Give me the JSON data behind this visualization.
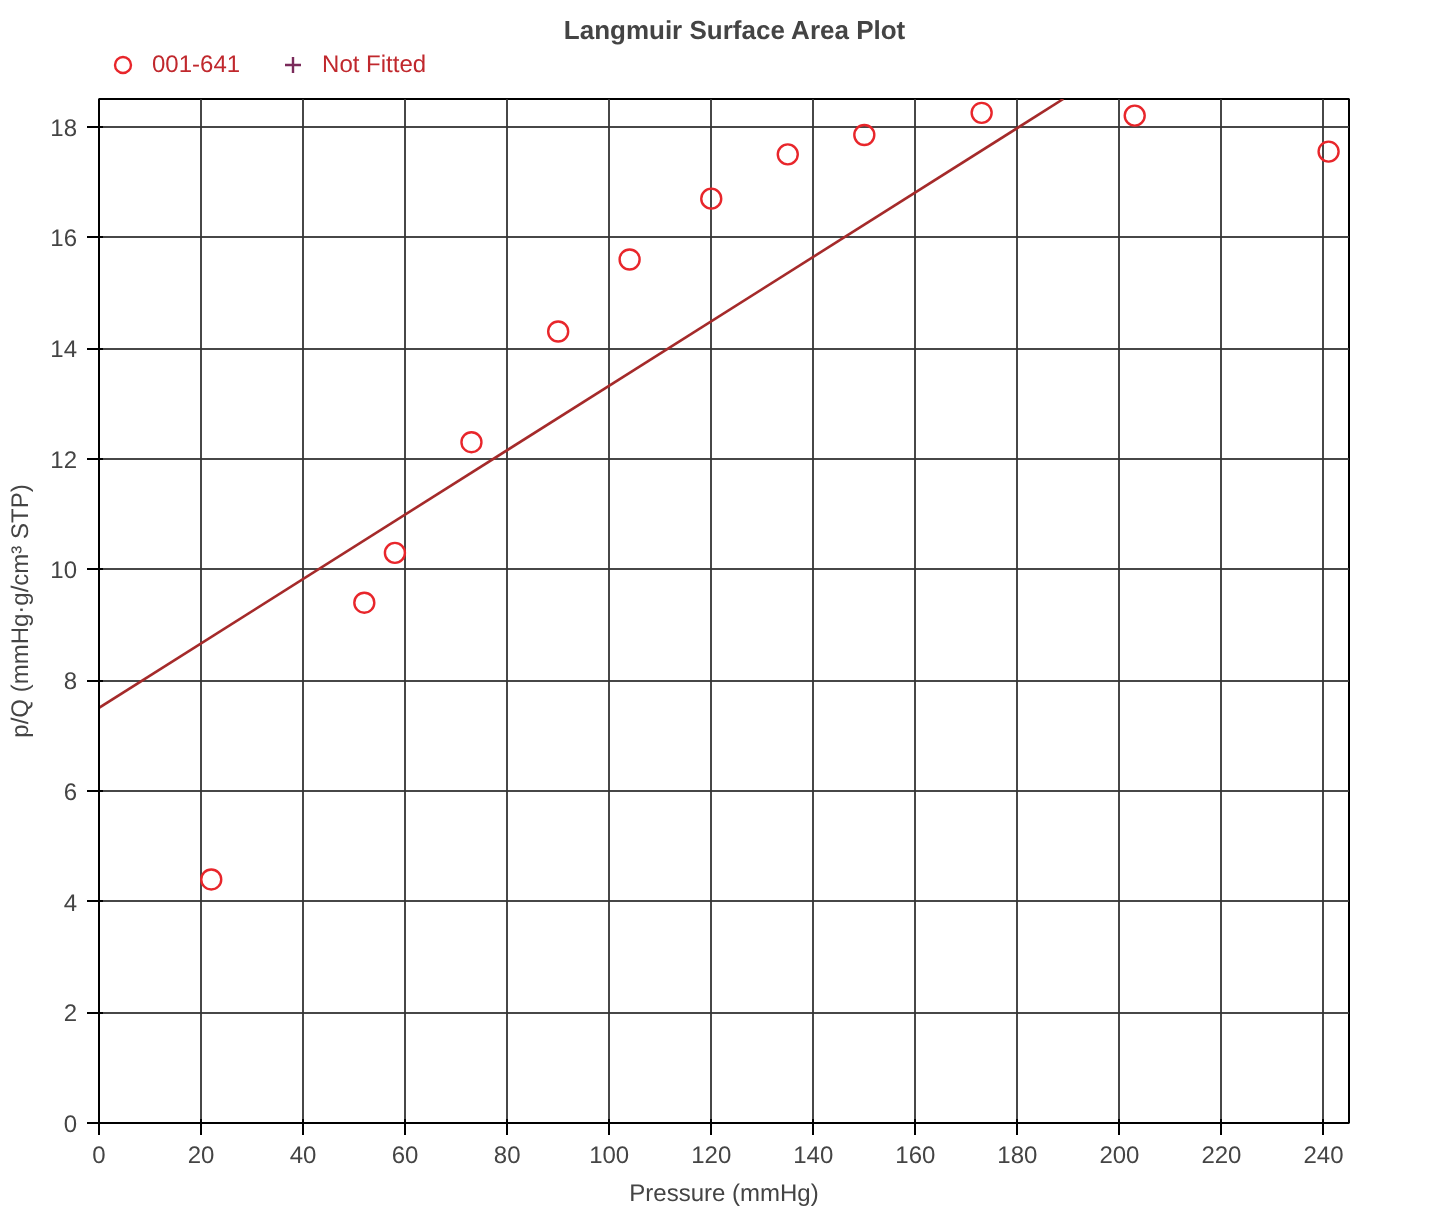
{
  "chart_data": {
    "type": "scatter",
    "title": "Langmuir Surface Area Plot",
    "xlabel": "Pressure (mmHg)",
    "ylabel": "p/Q (mmHg·g/cm³ STP)",
    "x": [
      22,
      52,
      58,
      73,
      90,
      104,
      120,
      135,
      150,
      173,
      203,
      241
    ],
    "series": [
      {
        "name": "001-641",
        "color": "#e8262b",
        "marker": "circle",
        "values": [
          4.4,
          9.4,
          10.3,
          12.3,
          14.3,
          15.6,
          16.7,
          17.5,
          17.85,
          18.25,
          18.2,
          17.55
        ]
      },
      {
        "name": "Not Fitted",
        "color": "#7a2a5a",
        "marker": "cross",
        "values": [
          null,
          null,
          null,
          null,
          null,
          null,
          null,
          null,
          null,
          null,
          null,
          null
        ]
      },
      {
        "type": "line",
        "color": "#a52a2a",
        "marker": "none",
        "x": [
          0,
          189
        ],
        "values": [
          7.5,
          18.5
        ]
      }
    ],
    "xlim": [
      0,
      245
    ],
    "ylim": [
      0,
      18.5
    ],
    "xticks": [
      0,
      20,
      40,
      60,
      80,
      100,
      120,
      140,
      160,
      180,
      200,
      220,
      240
    ],
    "yticks": [
      0,
      2,
      4,
      6,
      8,
      10,
      12,
      14,
      16,
      18
    ],
    "grid": true,
    "legend": "top left"
  }
}
